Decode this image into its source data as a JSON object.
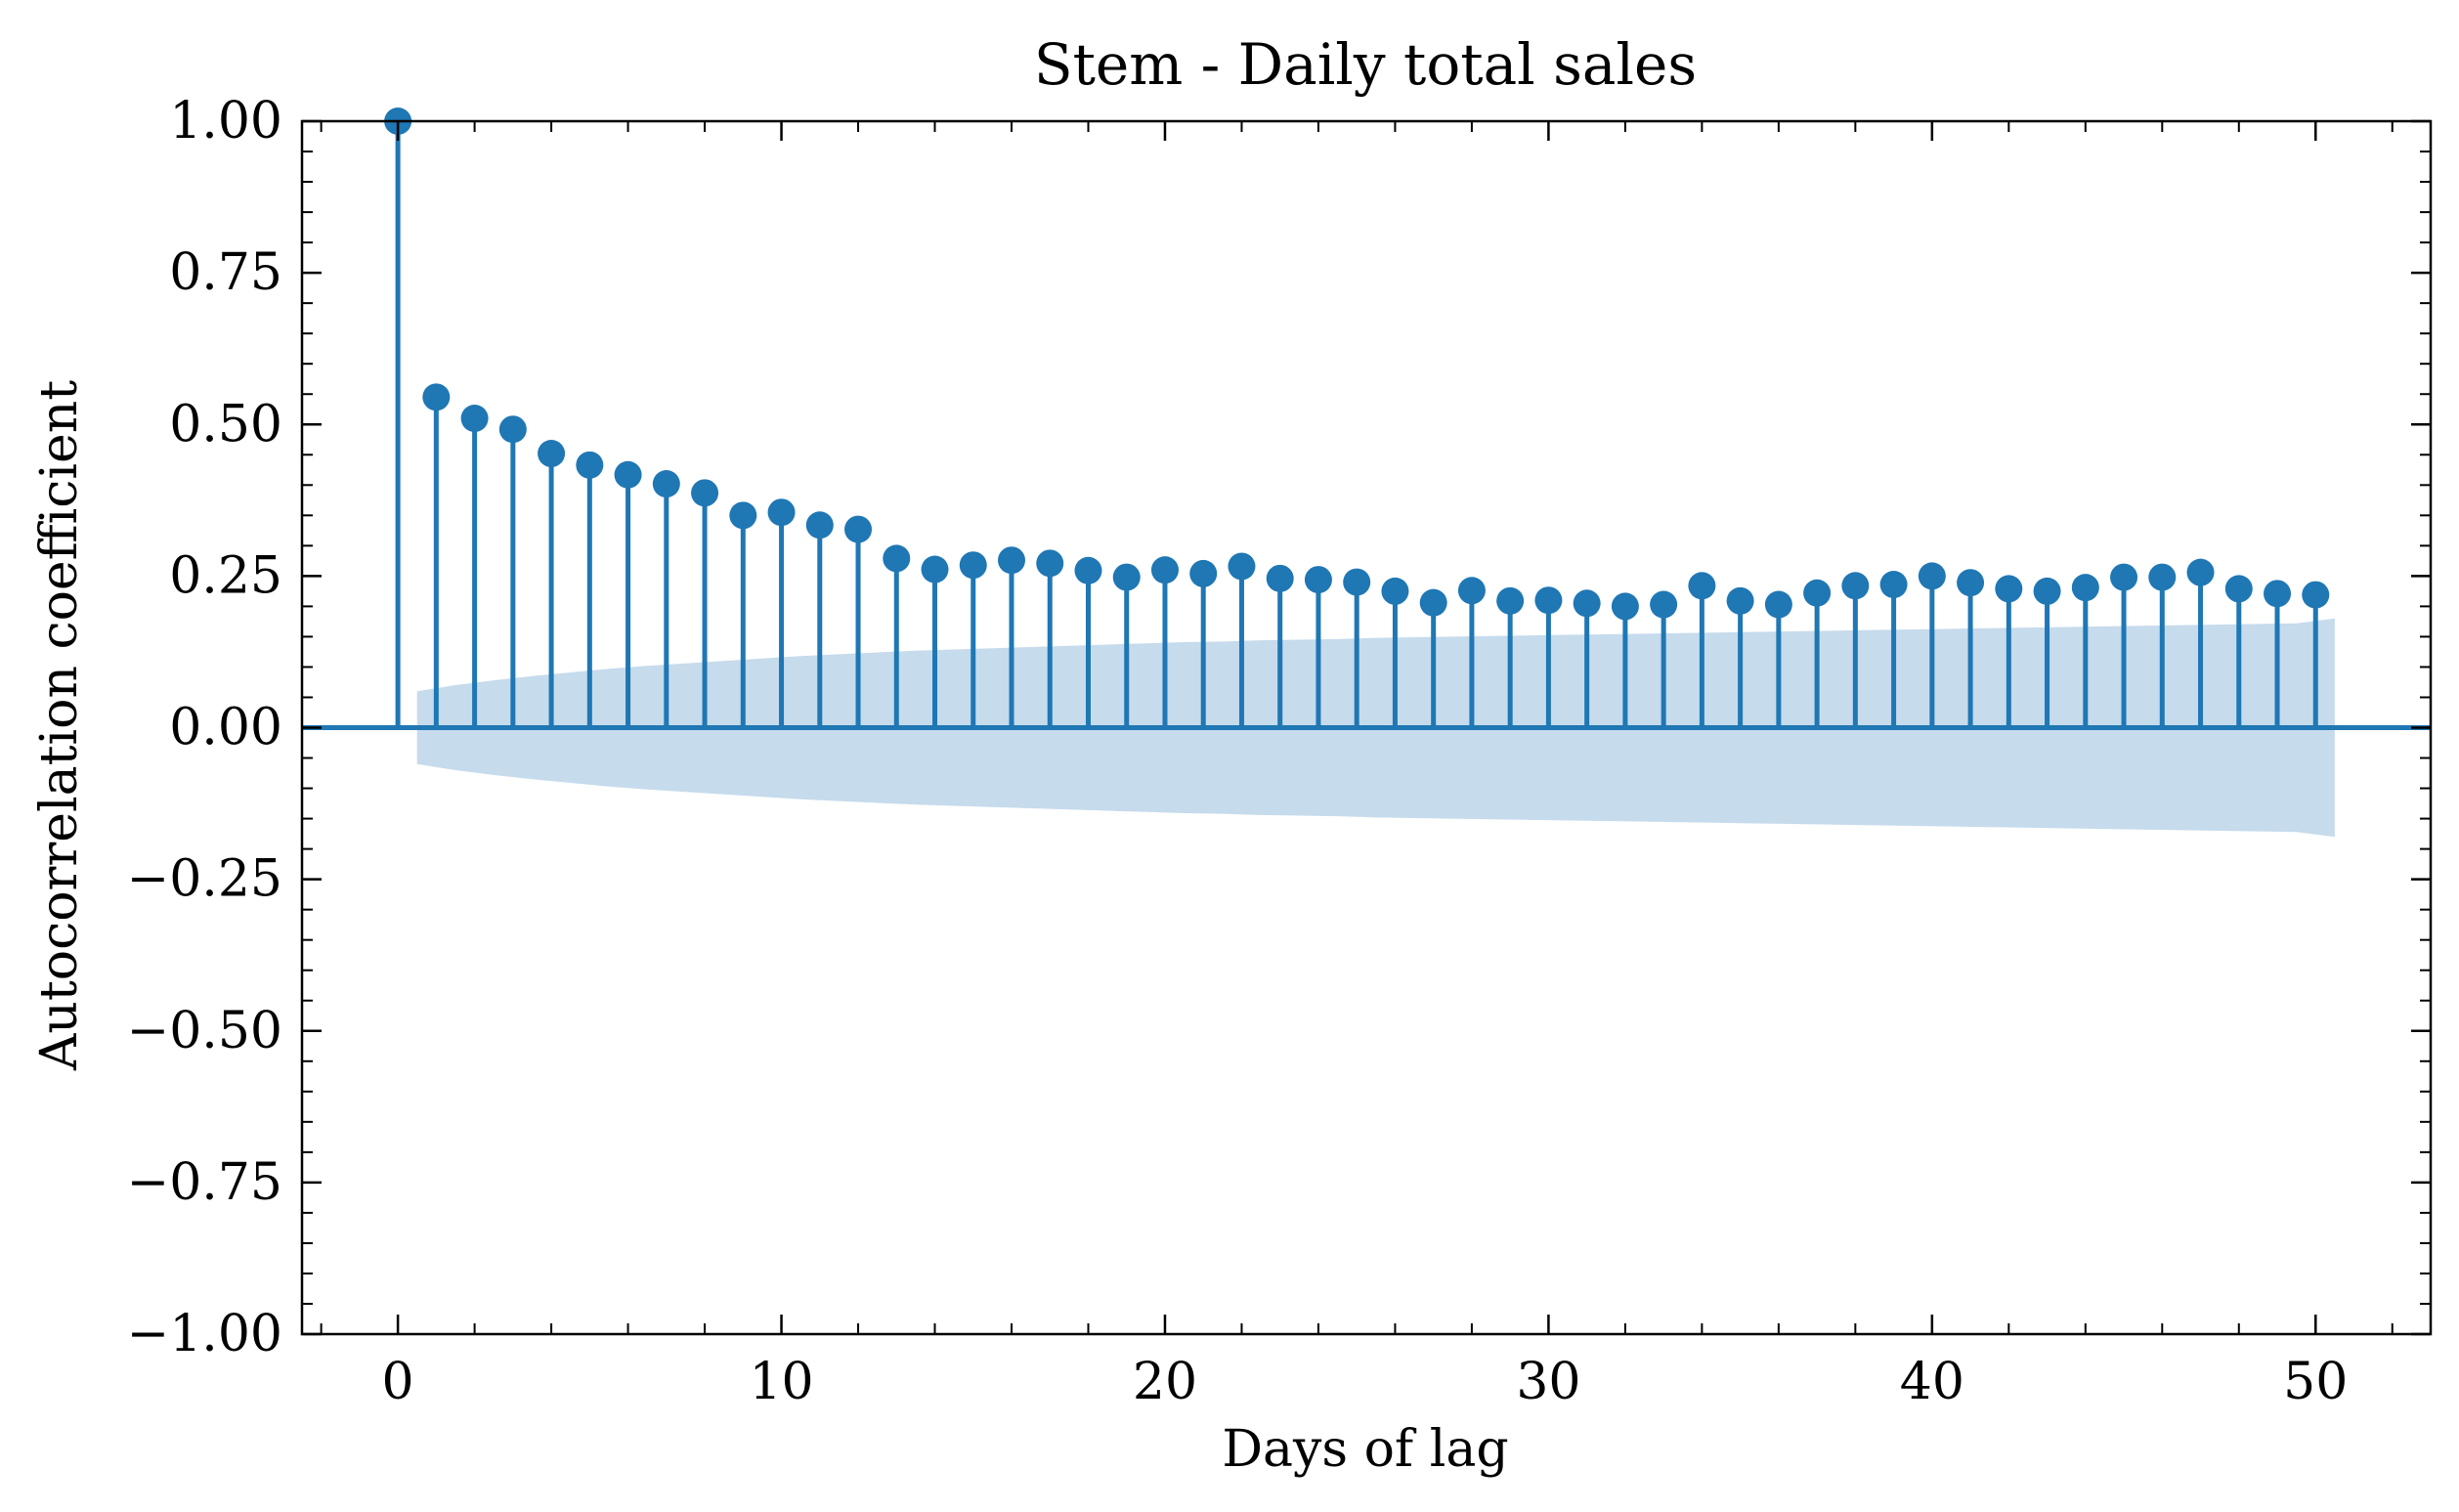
{
  "chart_data": {
    "type": "stem",
    "title": "Stem - Daily total sales",
    "xlabel": "Days of lag",
    "ylabel": "Autocorrelation coefficient",
    "xlim": [
      -2.5,
      53
    ],
    "ylim": [
      -1.0,
      1.0
    ],
    "x_ticks": [
      0,
      10,
      20,
      30,
      40,
      50
    ],
    "x_tick_labels": [
      "0",
      "10",
      "20",
      "30",
      "40",
      "50"
    ],
    "y_ticks": [
      1.0,
      0.75,
      0.5,
      0.25,
      0.0,
      -0.25,
      -0.5,
      -0.75,
      -1.0
    ],
    "y_tick_labels": [
      "1.00",
      "0.75",
      "0.50",
      "0.25",
      "0.00",
      "−0.25",
      "−0.50",
      "−0.75",
      "−1.00"
    ],
    "lags": [
      0,
      1,
      2,
      3,
      4,
      5,
      6,
      7,
      8,
      9,
      10,
      11,
      12,
      13,
      14,
      15,
      16,
      17,
      18,
      19,
      20,
      21,
      22,
      23,
      24,
      25,
      26,
      27,
      28,
      29,
      30,
      31,
      32,
      33,
      34,
      35,
      36,
      37,
      38,
      39,
      40,
      41,
      42,
      43,
      44,
      45,
      46,
      47,
      48,
      49,
      50
    ],
    "acf": [
      1.0,
      0.545,
      0.51,
      0.492,
      0.452,
      0.433,
      0.417,
      0.402,
      0.387,
      0.35,
      0.355,
      0.334,
      0.327,
      0.279,
      0.261,
      0.268,
      0.276,
      0.271,
      0.259,
      0.248,
      0.26,
      0.254,
      0.266,
      0.246,
      0.244,
      0.24,
      0.225,
      0.206,
      0.226,
      0.209,
      0.21,
      0.205,
      0.2,
      0.203,
      0.234,
      0.209,
      0.203,
      0.222,
      0.234,
      0.236,
      0.25,
      0.239,
      0.229,
      0.225,
      0.231,
      0.248,
      0.248,
      0.256,
      0.229,
      0.221,
      0.219
    ],
    "confidence_band": {
      "x": [
        0.5,
        1.5,
        2.5,
        3.5,
        4.5,
        5.5,
        6.5,
        7.5,
        8.5,
        9.5,
        10.5,
        11.5,
        12.5,
        13.5,
        14.5,
        15.5,
        16.5,
        17.5,
        18.5,
        19.5,
        20.5,
        21.5,
        22.5,
        23.5,
        24.5,
        25.5,
        26.5,
        27.5,
        28.5,
        29.5,
        30.5,
        31.5,
        32.5,
        33.5,
        34.5,
        35.5,
        36.5,
        37.5,
        38.5,
        39.5,
        40.5,
        41.5,
        42.5,
        43.5,
        44.5,
        45.5,
        46.5,
        47.5,
        48.5,
        49.5,
        50.5
      ],
      "half_width": [
        0.06,
        0.07,
        0.078,
        0.085,
        0.091,
        0.097,
        0.102,
        0.106,
        0.11,
        0.114,
        0.118,
        0.121,
        0.124,
        0.127,
        0.129,
        0.131,
        0.133,
        0.135,
        0.137,
        0.139,
        0.141,
        0.142,
        0.144,
        0.145,
        0.146,
        0.148,
        0.149,
        0.15,
        0.151,
        0.152,
        0.153,
        0.154,
        0.155,
        0.156,
        0.157,
        0.158,
        0.159,
        0.16,
        0.161,
        0.162,
        0.163,
        0.164,
        0.165,
        0.166,
        0.167,
        0.168,
        0.169,
        0.17,
        0.171,
        0.172,
        0.18
      ]
    },
    "grid": false,
    "colors": {
      "stem": "#1f77b4",
      "band": "#c6dbec",
      "axis": "#000000"
    }
  }
}
